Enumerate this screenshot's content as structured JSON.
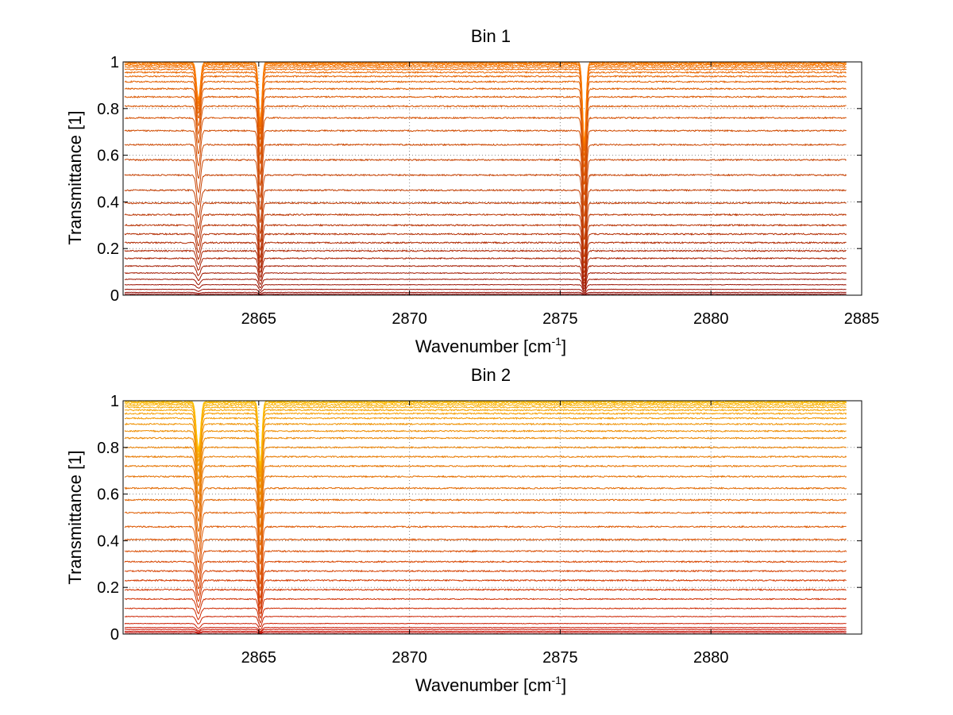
{
  "chart_data": [
    {
      "type": "line",
      "title": "Bin 1",
      "xlabel_main": "Wavenumber [cm",
      "xlabel_sup": "-1",
      "xlabel_end": "]",
      "ylabel": "Transmittance [1]",
      "xlim": [
        2860.5,
        2885
      ],
      "ylim": [
        0,
        1
      ],
      "xticks": [
        2865,
        2870,
        2875,
        2880,
        2885
      ],
      "yticks": [
        0,
        0.2,
        0.4,
        0.6,
        0.8,
        1
      ],
      "ytick_labels": [
        "0",
        "0.2",
        "0.4",
        "0.6",
        "0.8",
        "1"
      ],
      "grid": true,
      "x_end": 2884.5,
      "color_start": "#8b0000",
      "color_end": "#ff7f00",
      "absorption_lines": [
        {
          "center": 2863.0,
          "rel_depth": 0.35,
          "width": 0.09
        },
        {
          "center": 2865.05,
          "rel_depth": 0.55,
          "width": 0.08
        },
        {
          "center": 2875.8,
          "rel_depth": 0.75,
          "width": 0.08
        }
      ],
      "series_levels": [
        0.0,
        0.005,
        0.012,
        0.025,
        0.045,
        0.068,
        0.095,
        0.125,
        0.158,
        0.19,
        0.225,
        0.262,
        0.3,
        0.345,
        0.395,
        0.45,
        0.515,
        0.58,
        0.645,
        0.705,
        0.76,
        0.81,
        0.85,
        0.885,
        0.915,
        0.938,
        0.955,
        0.968,
        0.978,
        0.986,
        0.992,
        0.996,
        0.999
      ]
    },
    {
      "type": "line",
      "title": "Bin 2",
      "xlabel_main": "Wavenumber [cm",
      "xlabel_sup": "-1",
      "xlabel_end": "]",
      "ylabel": "Transmittance [1]",
      "xlim": [
        2860.5,
        2885
      ],
      "ylim": [
        0,
        1
      ],
      "xticks": [
        2865,
        2870,
        2875,
        2880
      ],
      "yticks": [
        0,
        0.2,
        0.4,
        0.6,
        0.8,
        1
      ],
      "ytick_labels": [
        "0",
        "0.2",
        "0.4",
        "0.6",
        "0.8",
        "1"
      ],
      "grid": true,
      "x_end": 2884.5,
      "color_start": "#c00000",
      "color_end": "#ffc000",
      "absorption_lines": [
        {
          "center": 2863.0,
          "rel_depth": 0.45,
          "width": 0.1
        },
        {
          "center": 2865.05,
          "rel_depth": 0.6,
          "width": 0.08
        }
      ],
      "series_levels": [
        0.0,
        0.006,
        0.012,
        0.02,
        0.028,
        0.045,
        0.075,
        0.11,
        0.15,
        0.19,
        0.23,
        0.27,
        0.31,
        0.355,
        0.405,
        0.46,
        0.52,
        0.575,
        0.625,
        0.675,
        0.72,
        0.76,
        0.8,
        0.84,
        0.87,
        0.9,
        0.925,
        0.945,
        0.96,
        0.972,
        0.982,
        0.99,
        0.995,
        0.999
      ]
    }
  ]
}
